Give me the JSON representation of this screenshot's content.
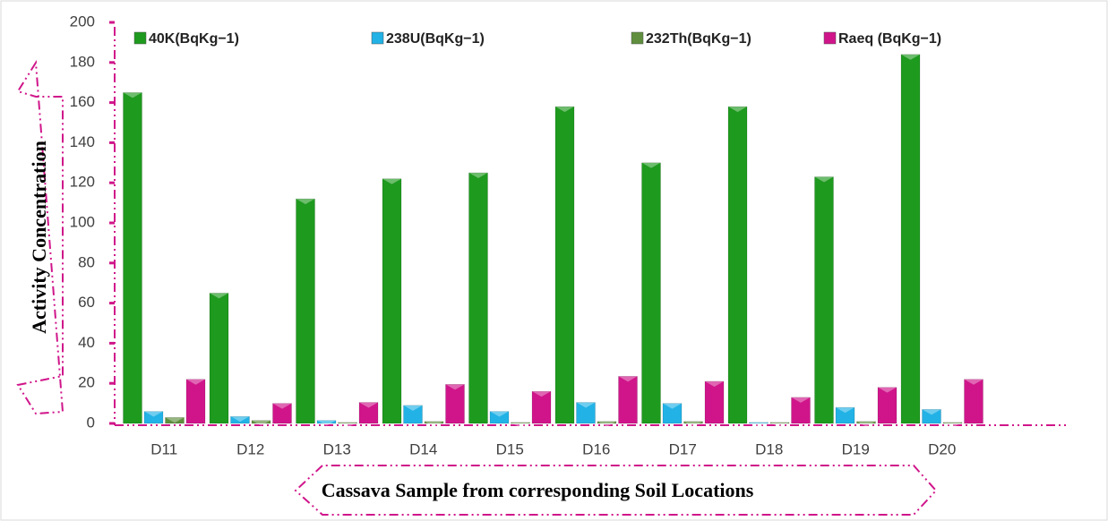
{
  "chart_data": {
    "type": "bar",
    "x_label": "Cassava Sample from corresponding Soil Locations",
    "y_label": "Activity Concentration",
    "categories": [
      "D11",
      "D12",
      "D13",
      "D14",
      "D15",
      "D16",
      "D17",
      "D18",
      "D19",
      "D20"
    ],
    "series": [
      {
        "name": "40K(BqKg−1)",
        "color": "#1e9a1e",
        "values": [
          165,
          65,
          112,
          122,
          125,
          158,
          130,
          158,
          123,
          184
        ]
      },
      {
        "name": "238U(BqKg−1)",
        "color": "#22b2e6",
        "values": [
          6,
          3.5,
          1.5,
          9,
          6,
          10.5,
          10,
          0.5,
          8,
          7
        ]
      },
      {
        "name": "232Th(BqKg−1)",
        "color": "#5f8f3e",
        "values": [
          3,
          1.5,
          0.5,
          1,
          0.5,
          1,
          1,
          0.5,
          1,
          0.5
        ]
      },
      {
        "name": "Raeq (BqKg−1)",
        "color": "#d0158a",
        "values": [
          22,
          10,
          10.5,
          19.5,
          16,
          23.5,
          21,
          13,
          18,
          22
        ]
      }
    ],
    "ylim": [
      0,
      200
    ],
    "yticks": [
      0,
      20,
      40,
      60,
      80,
      100,
      120,
      140,
      160,
      180,
      200
    ],
    "legend": "top",
    "grid": false
  }
}
